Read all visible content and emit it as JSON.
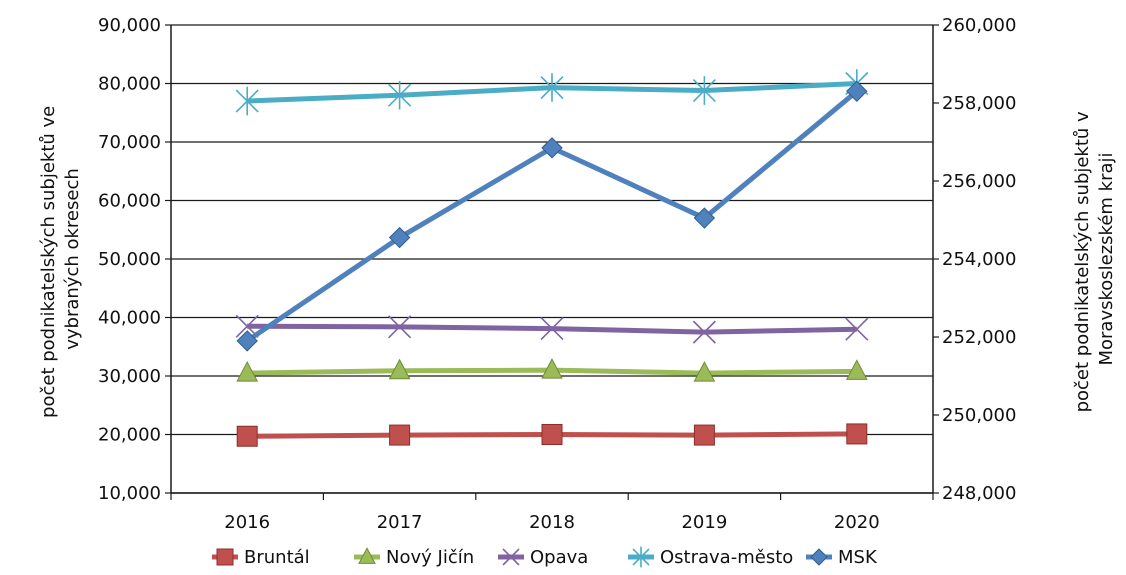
{
  "chart_data": {
    "type": "line",
    "categories": [
      "2016",
      "2017",
      "2018",
      "2019",
      "2020"
    ],
    "left_axis": {
      "label_lines": [
        "počet podnikatelských subjektů ve",
        "vybraných okresech"
      ],
      "ylim": [
        10000,
        90000
      ],
      "ticks": [
        "10,000",
        "20,000",
        "30,000",
        "40,000",
        "50,000",
        "60,000",
        "70,000",
        "80,000",
        "90,000"
      ]
    },
    "right_axis": {
      "label_lines": [
        "počet podnikatelských subjektů v",
        "Moravskoslezském kraji"
      ],
      "ylim": [
        248000,
        260000
      ],
      "ticks": [
        "248,000",
        "250,000",
        "252,000",
        "254,000",
        "256,000",
        "258,000",
        "260,000"
      ]
    },
    "grid": true,
    "legend_position": "bottom",
    "series": [
      {
        "name": "Bruntál",
        "axis": "left",
        "color": "#C0504D",
        "marker": "square",
        "values": [
          19700,
          19900,
          20000,
          19900,
          20100
        ]
      },
      {
        "name": "Nový Jičín",
        "axis": "left",
        "color": "#9BBB59",
        "marker": "triangle",
        "values": [
          30500,
          30900,
          31000,
          30500,
          30800
        ]
      },
      {
        "name": "Opava",
        "axis": "left",
        "color": "#8064A2",
        "marker": "x",
        "values": [
          38500,
          38400,
          38100,
          37500,
          38000
        ]
      },
      {
        "name": "Ostrava-město",
        "axis": "left",
        "color": "#4BACC6",
        "marker": "star",
        "values": [
          77000,
          78000,
          79300,
          78800,
          80000
        ]
      },
      {
        "name": "MSK",
        "axis": "right",
        "color": "#4F81BD",
        "marker": "diamond",
        "values": [
          251900,
          254550,
          256850,
          255050,
          258300
        ]
      }
    ]
  }
}
